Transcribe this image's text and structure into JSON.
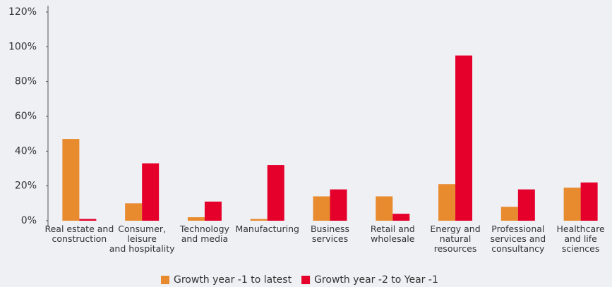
{
  "chart_data": {
    "type": "bar",
    "categories": [
      "Real estate and\nconstruction",
      "Consumer,\nleisure\nand hospitality",
      "Technology\nand media",
      "Manufacturing",
      "Business\nservices",
      "Retail and\nwholesale",
      "Energy and\nnatural\nresources",
      "Professional\nservices and\nconsultancy",
      "Healthcare\nand life\nsciences"
    ],
    "series": [
      {
        "name": "Growth year -1 to latest",
        "color": "#e88b2e",
        "values": [
          47,
          10,
          2,
          1,
          14,
          14,
          21,
          8,
          19
        ]
      },
      {
        "name": "Growth year -2 to Year -1",
        "color": "#e4002b",
        "values": [
          1,
          33,
          11,
          32,
          18,
          4,
          95,
          18,
          22
        ]
      }
    ],
    "ylim": [
      0,
      120
    ],
    "yticks": [
      {
        "value": 0,
        "label": "0%"
      },
      {
        "value": 20,
        "label": "20%"
      },
      {
        "value": 40,
        "label": "40%"
      },
      {
        "value": 60,
        "label": "60%"
      },
      {
        "value": 80,
        "label": "80%"
      },
      {
        "value": 100,
        "label": "100%"
      },
      {
        "value": 120,
        "label": "120%"
      }
    ],
    "legend": "bottom"
  }
}
